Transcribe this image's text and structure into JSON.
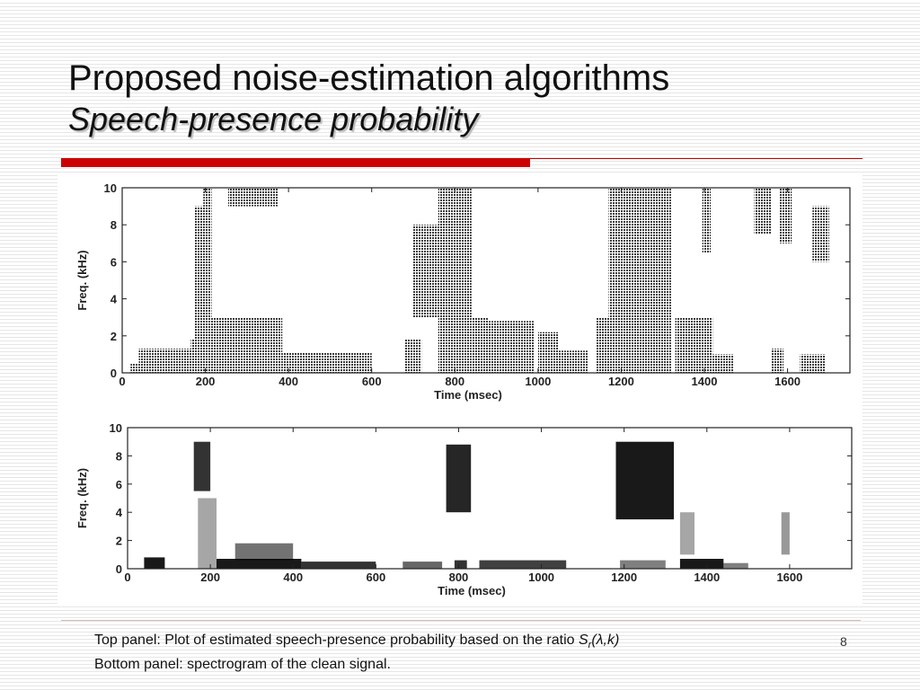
{
  "title": {
    "line1": "Proposed noise-estimation algorithms",
    "line2": "Speech-presence probability"
  },
  "caption": {
    "line1_prefix": "Top panel: Plot of estimated speech-presence probability based on the ratio ",
    "math_symbol": "S",
    "math_sub": "r",
    "math_args": "(λ,k)",
    "line2": "Bottom panel: spectrogram of the clean signal."
  },
  "slide_number": "8",
  "colors": {
    "accent_red": "#cc0000",
    "ink": "#111111"
  },
  "chart_data": [
    {
      "type": "heatmap",
      "xlabel": "Time (msec)",
      "ylabel": "Freq. (kHz)",
      "xlim": [
        0,
        1750
      ],
      "ylim": [
        0,
        10
      ],
      "xticks": [
        "0",
        "200",
        "400",
        "600",
        "800",
        "1000",
        "1200",
        "1400",
        "1600"
      ],
      "yticks": [
        "0",
        "2",
        "4",
        "6",
        "8",
        "10"
      ],
      "regions": [
        {
          "t0": 40,
          "t1": 170,
          "f0": 0,
          "f1": 1.3
        },
        {
          "t0": 20,
          "t1": 60,
          "f0": 0,
          "f1": 0.5
        },
        {
          "t0": 165,
          "t1": 210,
          "f0": 0,
          "f1": 1.8
        },
        {
          "t0": 175,
          "t1": 205,
          "f0": 1.5,
          "f1": 9.0
        },
        {
          "t0": 195,
          "t1": 215,
          "f0": 0,
          "f1": 10
        },
        {
          "t0": 215,
          "t1": 385,
          "f0": 0,
          "f1": 3.0
        },
        {
          "t0": 255,
          "t1": 375,
          "f0": 9.0,
          "f1": 10
        },
        {
          "t0": 385,
          "t1": 600,
          "f0": 0,
          "f1": 1.1
        },
        {
          "t0": 440,
          "t1": 580,
          "f0": 0,
          "f1": 0.7
        },
        {
          "t0": 680,
          "t1": 720,
          "f0": 0,
          "f1": 1.8
        },
        {
          "t0": 700,
          "t1": 780,
          "f0": 3.0,
          "f1": 8.0
        },
        {
          "t0": 760,
          "t1": 840,
          "f0": 0,
          "f1": 10
        },
        {
          "t0": 840,
          "t1": 880,
          "f0": 0,
          "f1": 3.0
        },
        {
          "t0": 880,
          "t1": 990,
          "f0": 0,
          "f1": 2.8
        },
        {
          "t0": 1000,
          "t1": 1050,
          "f0": 0,
          "f1": 2.2
        },
        {
          "t0": 1050,
          "t1": 1120,
          "f0": 0,
          "f1": 1.2
        },
        {
          "t0": 1140,
          "t1": 1170,
          "f0": 0,
          "f1": 3.0
        },
        {
          "t0": 1170,
          "t1": 1320,
          "f0": 0,
          "f1": 10
        },
        {
          "t0": 1330,
          "t1": 1420,
          "f0": 0,
          "f1": 3.0
        },
        {
          "t0": 1395,
          "t1": 1415,
          "f0": 6.5,
          "f1": 10
        },
        {
          "t0": 1420,
          "t1": 1470,
          "f0": 0,
          "f1": 1.0
        },
        {
          "t0": 1520,
          "t1": 1560,
          "f0": 7.5,
          "f1": 10
        },
        {
          "t0": 1560,
          "t1": 1590,
          "f0": 0,
          "f1": 1.3
        },
        {
          "t0": 1580,
          "t1": 1610,
          "f0": 7.0,
          "f1": 10
        },
        {
          "t0": 1630,
          "t1": 1690,
          "f0": 0,
          "f1": 1.0
        },
        {
          "t0": 1660,
          "t1": 1700,
          "f0": 6.0,
          "f1": 9.0
        }
      ]
    },
    {
      "type": "heatmap",
      "xlabel": "Time (msec)",
      "ylabel": "Freq. (kHz)",
      "xlim": [
        0,
        1750
      ],
      "ylim": [
        0,
        10
      ],
      "xticks": [
        "0",
        "200",
        "400",
        "600",
        "800",
        "1000",
        "1200",
        "1400",
        "1600"
      ],
      "yticks": [
        "0",
        "2",
        "4",
        "6",
        "8",
        "10"
      ],
      "regions": [
        {
          "t0": 40,
          "t1": 90,
          "f0": 0,
          "f1": 0.8,
          "level": 0.9
        },
        {
          "t0": 160,
          "t1": 200,
          "f0": 5.5,
          "f1": 9.0,
          "level": 0.8
        },
        {
          "t0": 170,
          "t1": 215,
          "f0": 0,
          "f1": 5.0,
          "level": 0.35
        },
        {
          "t0": 215,
          "t1": 420,
          "f0": 0,
          "f1": 0.7,
          "level": 0.9
        },
        {
          "t0": 260,
          "t1": 400,
          "f0": 0.6,
          "f1": 1.8,
          "level": 0.55
        },
        {
          "t0": 420,
          "t1": 600,
          "f0": 0,
          "f1": 0.5,
          "level": 0.8
        },
        {
          "t0": 665,
          "t1": 760,
          "f0": 0,
          "f1": 0.5,
          "level": 0.6
        },
        {
          "t0": 770,
          "t1": 830,
          "f0": 4.0,
          "f1": 8.8,
          "level": 0.85
        },
        {
          "t0": 790,
          "t1": 820,
          "f0": 0,
          "f1": 0.6,
          "level": 0.8
        },
        {
          "t0": 850,
          "t1": 1060,
          "f0": 0,
          "f1": 0.6,
          "level": 0.75
        },
        {
          "t0": 1180,
          "t1": 1320,
          "f0": 3.5,
          "f1": 9.0,
          "level": 0.9
        },
        {
          "t0": 1190,
          "t1": 1300,
          "f0": 0,
          "f1": 0.6,
          "level": 0.5
        },
        {
          "t0": 1335,
          "t1": 1440,
          "f0": 0,
          "f1": 0.7,
          "level": 0.9
        },
        {
          "t0": 1440,
          "t1": 1500,
          "f0": 0,
          "f1": 0.4,
          "level": 0.5
        },
        {
          "t0": 1335,
          "t1": 1370,
          "f0": 1.0,
          "f1": 4.0,
          "level": 0.35
        },
        {
          "t0": 1580,
          "t1": 1600,
          "f0": 1.0,
          "f1": 4.0,
          "level": 0.4
        }
      ]
    }
  ]
}
